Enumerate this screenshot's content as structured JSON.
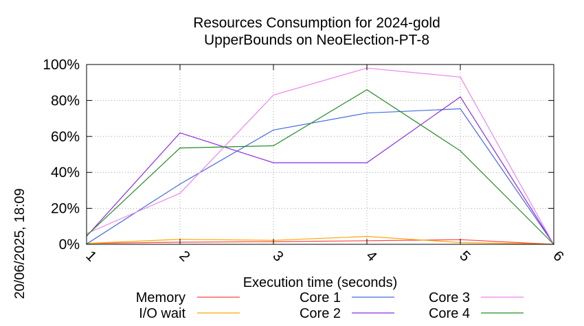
{
  "chart_data": {
    "type": "line",
    "title_lines": [
      "Resources Consumption for 2024-gold",
      "UpperBounds on NeoElection-PT-8"
    ],
    "xlabel": "Execution time (seconds)",
    "ylabel": "",
    "side_label": "20/06/2025, 18:09",
    "x": [
      1,
      2,
      3,
      4,
      5,
      6
    ],
    "x_ticks": [
      "1",
      "2",
      "3",
      "4",
      "5",
      "6"
    ],
    "xlim": [
      1,
      6
    ],
    "ylim": [
      0,
      100
    ],
    "y_ticks": [
      "0%",
      "20%",
      "40%",
      "60%",
      "80%",
      "100%"
    ],
    "y_tick_values": [
      0,
      20,
      40,
      60,
      80,
      100
    ],
    "grid": true,
    "legend_position": "bottom",
    "series": [
      {
        "name": "Memory",
        "color": "#ff4040",
        "values": [
          0.5,
          1.2,
          1.5,
          2.0,
          2.6,
          0
        ]
      },
      {
        "name": "I/O wait",
        "color": "#ffa500",
        "values": [
          0.5,
          2.8,
          2.2,
          4.4,
          1.0,
          0
        ]
      },
      {
        "name": "Core 1",
        "color": "#4169e1",
        "values": [
          0.2,
          33.5,
          63.6,
          73.0,
          75.4,
          0
        ]
      },
      {
        "name": "Core 2",
        "color": "#8a2be2",
        "values": [
          4.5,
          62.0,
          45.4,
          45.4,
          82.0,
          0
        ]
      },
      {
        "name": "Core 3",
        "color": "#ee82ee",
        "values": [
          6.0,
          28.4,
          83.0,
          98.0,
          93.0,
          0
        ]
      },
      {
        "name": "Core 4",
        "color": "#228b22",
        "values": [
          4.8,
          53.6,
          54.8,
          86.0,
          52.0,
          0
        ]
      }
    ]
  }
}
